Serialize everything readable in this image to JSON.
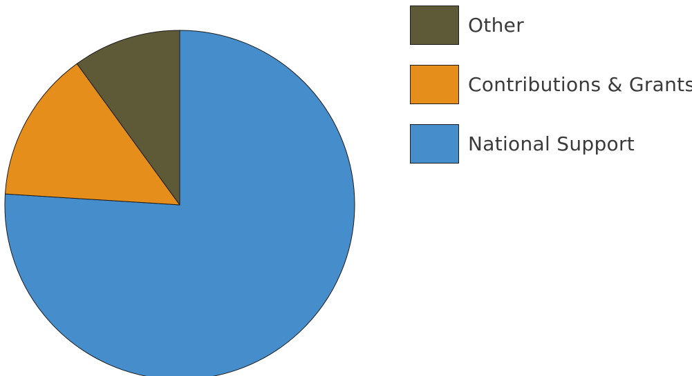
{
  "chart_data": {
    "type": "pie",
    "title": "",
    "start_angle_deg": 0,
    "direction": "clockwise",
    "slices": [
      {
        "label": "National Support",
        "value": 76,
        "color": "#468dcb"
      },
      {
        "label": "Contributions & Grants",
        "value": 14,
        "color": "#e58e1b"
      },
      {
        "label": "Other",
        "value": 10,
        "color": "#5e5a37"
      }
    ],
    "legend": {
      "placement": "right",
      "items": [
        {
          "label": "Other",
          "color": "#5e5a37"
        },
        {
          "label": "Contributions & Grants",
          "color": "#e58e1b"
        },
        {
          "label": "National Support",
          "color": "#468dcb"
        }
      ]
    }
  }
}
